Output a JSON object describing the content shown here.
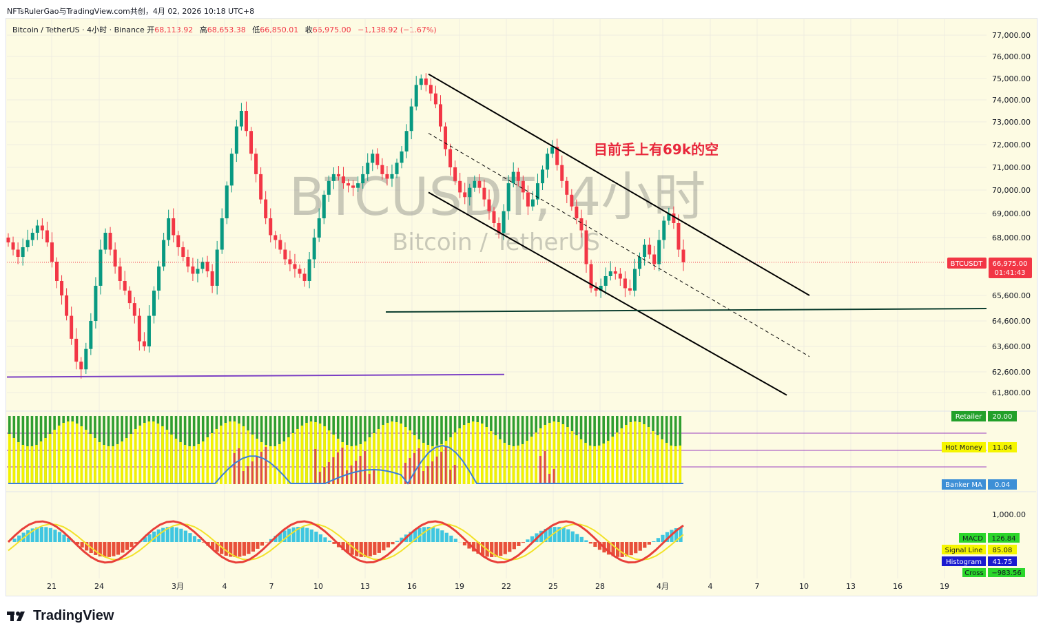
{
  "header": {
    "title": "NFTsRulerGao与TradingView.com共创，4月 02, 2026 10:18 UTC+8"
  },
  "legend": {
    "symbol": "Bitcoin / TetherUS · 4小时 · Binance",
    "open_label": "开",
    "open": "68,113.92",
    "high_label": "高",
    "high": "68,653.38",
    "low_label": "低",
    "low": "66,850.01",
    "close_label": "收",
    "close": "66,975.00",
    "change": "−1,138.92 (−1.67%)"
  },
  "watermark": {
    "main": "BTCUSDT, 4小时",
    "sub": "Bitcoin / TetherUS"
  },
  "annotation": "目前手上有69k的空",
  "price_tag": {
    "name": "BTCUSDT",
    "price": "66,975.00",
    "countdown": "01:41:43"
  },
  "indicator1": {
    "retailer_label": "Retailer",
    "retailer_value": "20.00",
    "hotmoney_label": "Hot Money",
    "hotmoney_value": "11.04",
    "banker_label": "Banker MA",
    "banker_value": "0.04"
  },
  "indicator2": {
    "axis_label": "1,000.00",
    "macd_label": "MACD",
    "macd_value": "126.84",
    "signal_label": "Signal Line",
    "signal_value": "85.08",
    "hist_label": "Histogram",
    "hist_value": "41.75",
    "cross_label": "Cross",
    "cross_value": "−983.56"
  },
  "x_ticks": [
    "21",
    "24",
    "3月",
    "4",
    "7",
    "10",
    "13",
    "16",
    "19",
    "22",
    "25",
    "28",
    "4月",
    "4",
    "7",
    "10",
    "13",
    "16",
    "19"
  ],
  "brand": "TradingView",
  "colors": {
    "up": "#089981",
    "down": "#f23645",
    "channel": "#000000",
    "support": "#0b3d2e",
    "purple": "#7b3fc4",
    "annotation": "#e8283c"
  },
  "chart_data": {
    "type": "candlestick",
    "title": "Bitcoin / TetherUS · 4小时 · Binance",
    "y_ticks": [
      77000,
      76000,
      75000,
      74000,
      73000,
      72000,
      71000,
      70000,
      69000,
      68000,
      65600,
      64600,
      63600,
      62600,
      61800
    ],
    "y_tick_labels": [
      "77,000.00",
      "76,000.00",
      "75,000.00",
      "74,000.00",
      "73,000.00",
      "72,000.00",
      "71,000.00",
      "70,000.00",
      "69,000.00",
      "68,000.00",
      "65,600.00",
      "64,600.00",
      "63,600.00",
      "62,600.00",
      "61,800.00"
    ],
    "approx_closes": [
      67800,
      67500,
      67200,
      67600,
      67900,
      68200,
      68500,
      68300,
      67800,
      67000,
      66200,
      65600,
      64800,
      63900,
      63000,
      62700,
      63500,
      64600,
      66000,
      67500,
      68200,
      67500,
      66800,
      66200,
      65800,
      65300,
      64800,
      63800,
      63600,
      64800,
      65800,
      66800,
      67900,
      68800,
      68100,
      67600,
      67200,
      66800,
      66500,
      66700,
      67000,
      66600,
      66000,
      67500,
      68800,
      70200,
      71600,
      72800,
      73500,
      72600,
      71600,
      70700,
      69600,
      68800,
      68100,
      67900,
      67500,
      67100,
      66900,
      66700,
      66500,
      66200,
      67100,
      68000,
      68800,
      69800,
      70400,
      70700,
      70600,
      70300,
      70200,
      70100,
      70300,
      70700,
      71200,
      71600,
      71100,
      70700,
      70500,
      70700,
      71200,
      71700,
      72600,
      73700,
      74700,
      75000,
      74700,
      74300,
      73800,
      72800,
      71800,
      71000,
      70400,
      69900,
      69700,
      70100,
      70400,
      70100,
      69600,
      69100,
      68600,
      68200,
      69100,
      70300,
      70800,
      70400,
      69900,
      69300,
      69600,
      70300,
      70900,
      71600,
      71900,
      71100,
      70400,
      69800,
      69300,
      68800,
      68300,
      66900,
      65900,
      65800,
      66000,
      66400,
      66600,
      66500,
      66300,
      65900,
      65800,
      66700,
      67200,
      67700,
      67300,
      66900,
      67900,
      68700,
      69000,
      68600,
      67500,
      66975
    ],
    "lines": [
      {
        "name": "",
        "kind": "channel-upper",
        "from": [
          75200
        ],
        "to": [
          65600
        ]
      },
      {
        "name": "",
        "kind": "channel-lower",
        "from": [
          69900
        ],
        "to": [
          61700
        ]
      },
      {
        "name": "",
        "kind": "channel-mid-dashed",
        "from": [
          72500
        ],
        "to": [
          63200
        ]
      },
      {
        "name": "",
        "kind": "support",
        "value": 64950
      },
      {
        "name": "",
        "kind": "purple-trend",
        "from": [
          62400
        ],
        "to": [
          62500
        ]
      }
    ],
    "last_price": 66975
  }
}
